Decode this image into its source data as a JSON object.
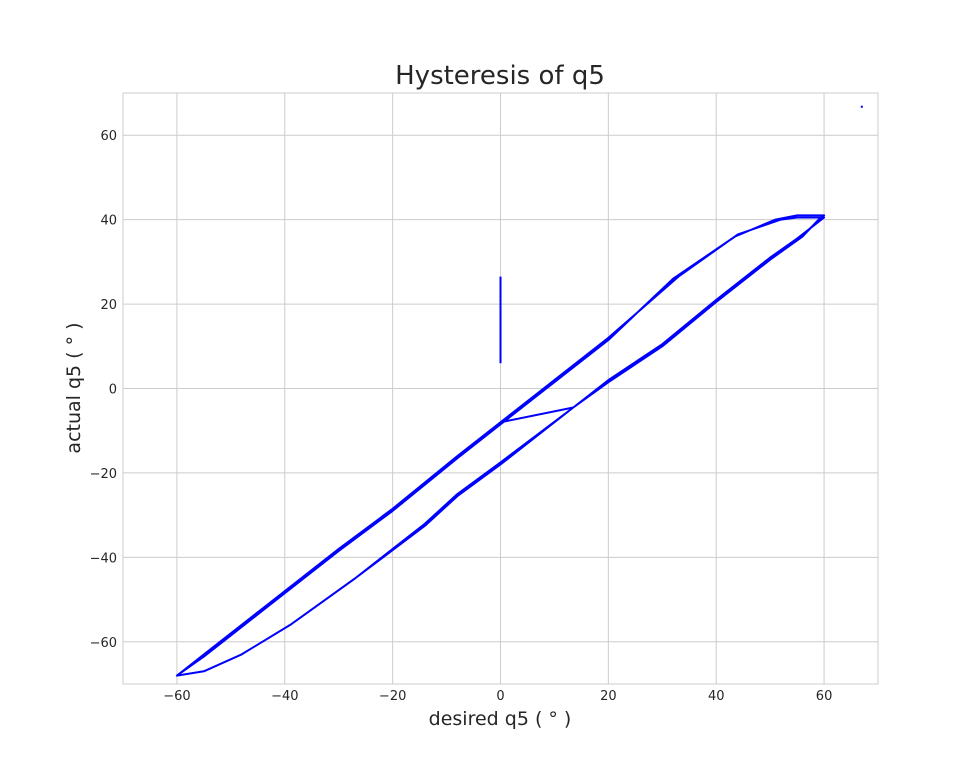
{
  "chart_data": {
    "type": "line",
    "title": "Hysteresis of q5",
    "xlabel": "desired q5 ( $^\\circ$ )",
    "ylabel": "actual q5 ( $^\\circ$ )",
    "xlabel_text": "desired q5 ( ° )",
    "ylabel_text": "actual q5 ( ° )",
    "xlim": [
      -70,
      70
    ],
    "ylim": [
      -70,
      70
    ],
    "xticks": [
      -60,
      -40,
      -20,
      0,
      20,
      40,
      60
    ],
    "yticks": [
      -60,
      -40,
      -20,
      0,
      20,
      40,
      60
    ],
    "xtick_labels": [
      "−60",
      "−40",
      "−20",
      "0",
      "20",
      "40",
      "60"
    ],
    "ytick_labels": [
      "−60",
      "−40",
      "−20",
      "0",
      "20",
      "40",
      "60"
    ],
    "grid": true,
    "line_color": "#0000ff",
    "series": [
      {
        "points": [
          [
            67,
            67
          ],
          [
            67,
            66.5
          ]
        ]
      },
      {
        "points": [
          [
            0,
            26.5
          ],
          [
            0,
            6
          ]
        ]
      },
      {
        "points": [
          [
            0,
            -8
          ],
          [
            13.5,
            -4.5
          ],
          [
            20,
            2
          ],
          [
            30,
            10.5
          ],
          [
            40,
            21
          ],
          [
            50,
            31
          ],
          [
            55,
            35.5
          ],
          [
            60,
            40.5
          ],
          [
            55,
            40.5
          ],
          [
            52,
            40
          ],
          [
            44,
            36.5
          ],
          [
            33,
            26.5
          ],
          [
            20,
            12
          ],
          [
            8,
            0
          ],
          [
            0,
            -8
          ],
          [
            -8,
            -16
          ],
          [
            -20,
            -28.5
          ],
          [
            -30,
            -38
          ],
          [
            -44,
            -52
          ],
          [
            -55,
            -63
          ],
          [
            -60,
            -68
          ],
          [
            -55,
            -67
          ],
          [
            -48,
            -63
          ],
          [
            -39,
            -56
          ],
          [
            -27,
            -45
          ],
          [
            -14,
            -32
          ],
          [
            -8,
            -25
          ],
          [
            0,
            -17.5
          ],
          [
            13.5,
            -4.5
          ],
          [
            20,
            1.5
          ],
          [
            30,
            10
          ],
          [
            40,
            20.5
          ],
          [
            50,
            30.5
          ],
          [
            56,
            36
          ],
          [
            59,
            40
          ],
          [
            60,
            41
          ],
          [
            55,
            41
          ],
          [
            51,
            40
          ],
          [
            43.5,
            36
          ],
          [
            32,
            26
          ],
          [
            20,
            11.5
          ],
          [
            8,
            -0.5
          ],
          [
            0,
            -8.5
          ],
          [
            -8,
            -16.5
          ],
          [
            -20,
            -29
          ],
          [
            -30,
            -38.5
          ],
          [
            -44,
            -52.5
          ],
          [
            -55,
            -63.5
          ],
          [
            -60,
            -68
          ],
          [
            -55,
            -67
          ],
          [
            -48,
            -63
          ],
          [
            -39,
            -56
          ],
          [
            -27,
            -45
          ],
          [
            -14,
            -32.5
          ],
          [
            -8,
            -25.5
          ],
          [
            0,
            -18
          ],
          [
            13.5,
            -4.5
          ],
          [
            20,
            1.8
          ],
          [
            30,
            10.3
          ],
          [
            40,
            20.8
          ],
          [
            50,
            30.8
          ],
          [
            56,
            36.3
          ],
          [
            60,
            41
          ]
        ]
      }
    ]
  }
}
